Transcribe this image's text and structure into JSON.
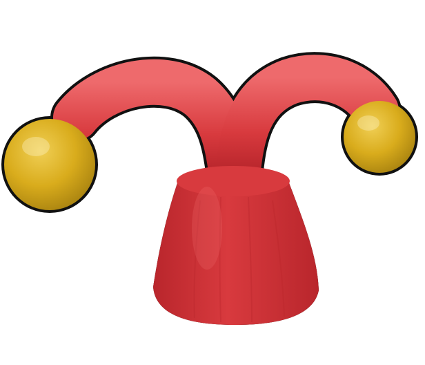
{
  "image": {
    "subject": "jester-hat-icon",
    "colors": {
      "background": "#ffffff",
      "hat_red": "#d83a3e",
      "hat_red_dark": "#b9262c",
      "hat_red_light": "#ee6a6c",
      "bell_yellow": "#d9ac1c",
      "bell_yellow_dark": "#a98310",
      "bell_yellow_light": "#f0cf55",
      "outline": "#111111"
    }
  }
}
